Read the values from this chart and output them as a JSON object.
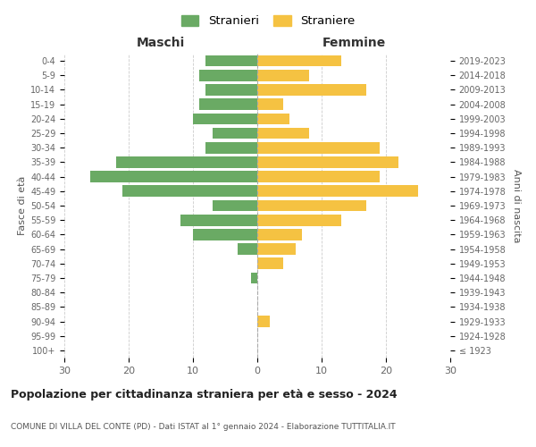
{
  "age_groups": [
    "100+",
    "95-99",
    "90-94",
    "85-89",
    "80-84",
    "75-79",
    "70-74",
    "65-69",
    "60-64",
    "55-59",
    "50-54",
    "45-49",
    "40-44",
    "35-39",
    "30-34",
    "25-29",
    "20-24",
    "15-19",
    "10-14",
    "5-9",
    "0-4"
  ],
  "birth_years": [
    "≤ 1923",
    "1924-1928",
    "1929-1933",
    "1934-1938",
    "1939-1943",
    "1944-1948",
    "1949-1953",
    "1954-1958",
    "1959-1963",
    "1964-1968",
    "1969-1973",
    "1974-1978",
    "1979-1983",
    "1984-1988",
    "1989-1993",
    "1994-1998",
    "1999-2003",
    "2004-2008",
    "2009-2013",
    "2014-2018",
    "2019-2023"
  ],
  "maschi": [
    0,
    0,
    0,
    0,
    0,
    1,
    0,
    3,
    10,
    12,
    7,
    21,
    26,
    22,
    8,
    7,
    10,
    9,
    8,
    9,
    8
  ],
  "femmine": [
    0,
    0,
    2,
    0,
    0,
    0,
    4,
    6,
    7,
    13,
    17,
    25,
    19,
    22,
    19,
    8,
    5,
    4,
    17,
    8,
    13
  ],
  "maschi_color": "#6aaa64",
  "femmine_color": "#f5c242",
  "title": "Popolazione per cittadinanza straniera per età e sesso - 2024",
  "subtitle": "COMUNE DI VILLA DEL CONTE (PD) - Dati ISTAT al 1° gennaio 2024 - Elaborazione TUTTITALIA.IT",
  "xlabel_left": "Maschi",
  "xlabel_right": "Femmine",
  "ylabel_left": "Fasce di età",
  "ylabel_right": "Anni di nascita",
  "legend_stranieri": "Stranieri",
  "legend_straniere": "Straniere",
  "xlim": 30,
  "background_color": "#ffffff",
  "grid_color": "#cccccc"
}
